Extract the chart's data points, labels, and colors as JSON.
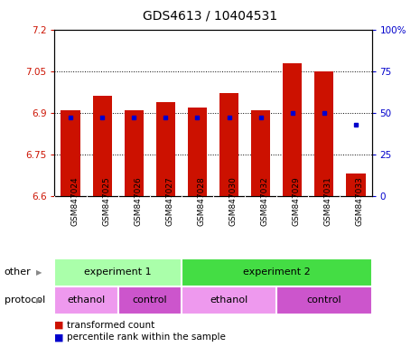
{
  "title": "GDS4613 / 10404531",
  "samples": [
    "GSM847024",
    "GSM847025",
    "GSM847026",
    "GSM847027",
    "GSM847028",
    "GSM847030",
    "GSM847032",
    "GSM847029",
    "GSM847031",
    "GSM847033"
  ],
  "transformed_count": [
    6.91,
    6.96,
    6.91,
    6.94,
    6.92,
    6.97,
    6.91,
    7.08,
    7.05,
    6.68
  ],
  "percentile_rank": [
    47,
    47,
    47,
    47,
    47,
    47,
    47,
    50,
    50,
    43
  ],
  "ylim_left": [
    6.6,
    7.2
  ],
  "ylim_right": [
    0,
    100
  ],
  "yticks_left": [
    6.6,
    6.75,
    6.9,
    7.05,
    7.2
  ],
  "yticks_right": [
    0,
    25,
    50,
    75,
    100
  ],
  "bar_color": "#CC1100",
  "dot_color": "#0000CC",
  "bar_baseline": 6.6,
  "experiment_groups": [
    {
      "label": "experiment 1",
      "start": 0,
      "end": 4,
      "color": "#AAFFAA"
    },
    {
      "label": "experiment 2",
      "start": 4,
      "end": 10,
      "color": "#44DD44"
    }
  ],
  "protocol_groups": [
    {
      "label": "ethanol",
      "start": 0,
      "end": 2,
      "color": "#EE99EE"
    },
    {
      "label": "control",
      "start": 2,
      "end": 4,
      "color": "#CC55CC"
    },
    {
      "label": "ethanol",
      "start": 4,
      "end": 7,
      "color": "#EE99EE"
    },
    {
      "label": "control",
      "start": 7,
      "end": 10,
      "color": "#CC55CC"
    }
  ],
  "row_labels": [
    "other",
    "protocol"
  ],
  "legend_items": [
    "transformed count",
    "percentile rank within the sample"
  ],
  "title_fontsize": 10,
  "tick_fontsize": 7.5,
  "sample_fontsize": 6.5,
  "annot_fontsize": 8,
  "legend_fontsize": 7.5
}
